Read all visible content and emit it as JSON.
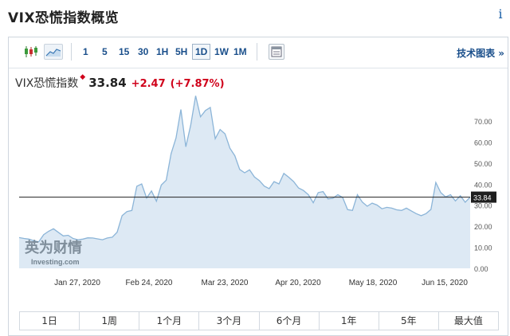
{
  "header": {
    "title": "VIX恐慌指数概览",
    "info_icon": "i"
  },
  "toolbar": {
    "icons": [
      "candlestick-icon",
      "area-chart-icon",
      "table-icon"
    ],
    "periods": [
      "1",
      "5",
      "15",
      "30",
      "1H",
      "5H",
      "1D",
      "1W",
      "1M"
    ],
    "active_period": "1D",
    "tech_chart_label": "技术图表 »"
  },
  "quote": {
    "name": "VIX恐慌指数",
    "last": "33.84",
    "change": "+2.47",
    "change_pct": "(+7.87%)",
    "change_color": "#d0021b"
  },
  "chart_data": {
    "type": "area",
    "x_labels": [
      "Jan 27, 2020",
      "Feb 24, 2020",
      "Mar 23, 2020",
      "Apr 20, 2020",
      "May 18, 2020",
      "Jun 15, 2020"
    ],
    "y_ticks": [
      "0.00",
      "10.00",
      "20.00",
      "30.00",
      "40.00",
      "50.00",
      "60.00",
      "70.00"
    ],
    "ylim": [
      0,
      82.5
    ],
    "current_label": "33.84",
    "current_value": 33.84,
    "watermark": [
      "英为财情",
      "Investing.com"
    ],
    "fill_color": "#dde9f4",
    "line_color": "#8cb5d8",
    "values": [
      14.6,
      14.2,
      13.9,
      13.1,
      12.6,
      16.0,
      17.6,
      18.8,
      17.1,
      15.4,
      15.7,
      14.2,
      13.6,
      13.9,
      14.5,
      14.4,
      14.0,
      13.6,
      14.4,
      14.8,
      17.2,
      25.0,
      27.0,
      27.5,
      39.0,
      40.1,
      33.4,
      36.8,
      31.9,
      39.6,
      41.9,
      54.5,
      62.0,
      75.5,
      57.8,
      68.0,
      82.0,
      72.0,
      75.0,
      76.5,
      61.6,
      66.0,
      63.9,
      57.1,
      53.5,
      47.0,
      45.4,
      46.8,
      43.4,
      41.7,
      39.1,
      37.9,
      41.2,
      40.1,
      45.1,
      43.3,
      41.2,
      38.2,
      37.0,
      35.0,
      31.2,
      36.0,
      36.5,
      33.0,
      33.3,
      35.0,
      33.7,
      27.9,
      27.5,
      35.0,
      31.5,
      29.5,
      31.0,
      30.1,
      28.3,
      29.0,
      28.6,
      27.8,
      27.5,
      28.6,
      27.3,
      26.0,
      25.0,
      26.0,
      28.0,
      40.8,
      36.0,
      34.0,
      35.0,
      32.0,
      34.5,
      31.4,
      33.8
    ]
  },
  "range_buttons": [
    "1日",
    "1周",
    "1个月",
    "3个月",
    "6个月",
    "1年",
    "5年",
    "最大值"
  ]
}
